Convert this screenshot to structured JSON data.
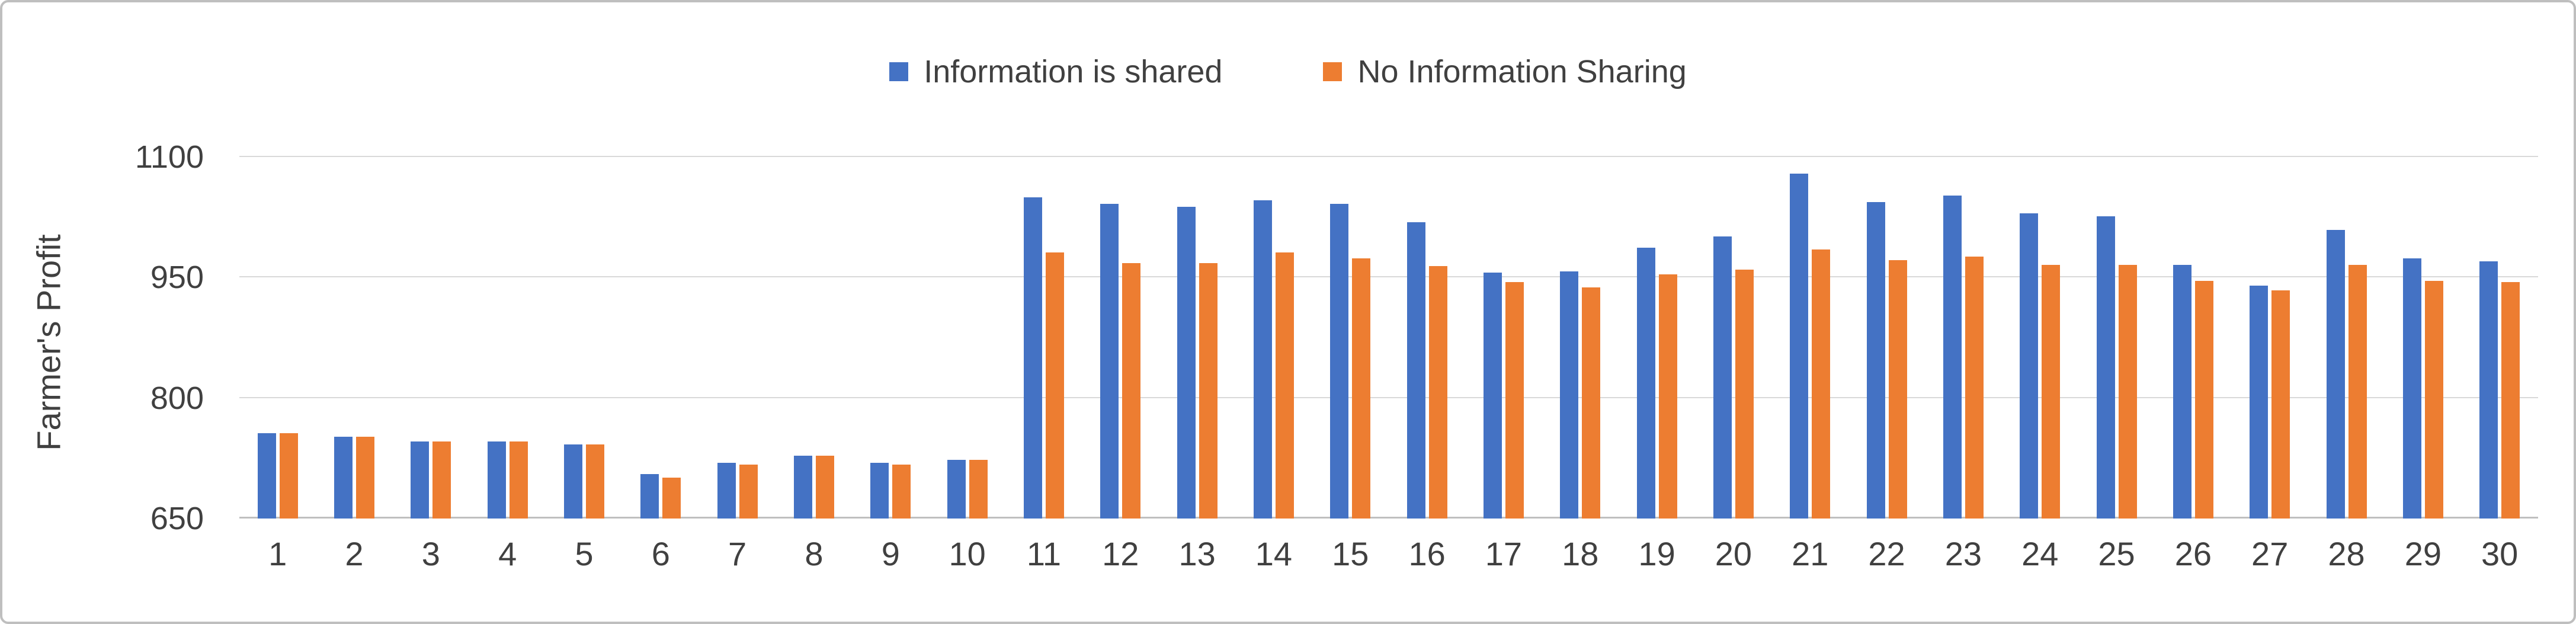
{
  "chart_data": {
    "type": "bar",
    "title": "",
    "xlabel": "",
    "ylabel": "Farmer's Profit",
    "ylim": [
      650,
      1100
    ],
    "yticks": [
      650,
      800,
      950,
      1100
    ],
    "grid": true,
    "legend_position": "top-center",
    "categories": [
      "1",
      "2",
      "3",
      "4",
      "5",
      "6",
      "7",
      "8",
      "9",
      "10",
      "11",
      "12",
      "13",
      "14",
      "15",
      "16",
      "17",
      "18",
      "19",
      "20",
      "21",
      "22",
      "23",
      "24",
      "25",
      "26",
      "27",
      "28",
      "29",
      "30"
    ],
    "series": [
      {
        "name": "Information is shared",
        "color": "#4472C4",
        "values": [
          756,
          752,
          746,
          746,
          742,
          705,
          719,
          728,
          719,
          723,
          1050,
          1042,
          1038,
          1046,
          1042,
          1019,
          956,
          958,
          987,
          1001,
          1079,
          1044,
          1052,
          1030,
          1026,
          966,
          940,
          1009,
          974,
          970
        ]
      },
      {
        "name": "No Information Sharing",
        "color": "#ED7D31",
        "values": [
          756,
          752,
          746,
          746,
          742,
          701,
          717,
          728,
          717,
          723,
          981,
          968,
          968,
          981,
          974,
          964,
          944,
          938,
          954,
          960,
          985,
          972,
          976,
          966,
          966,
          946,
          934,
          966,
          946,
          944
        ]
      }
    ]
  }
}
